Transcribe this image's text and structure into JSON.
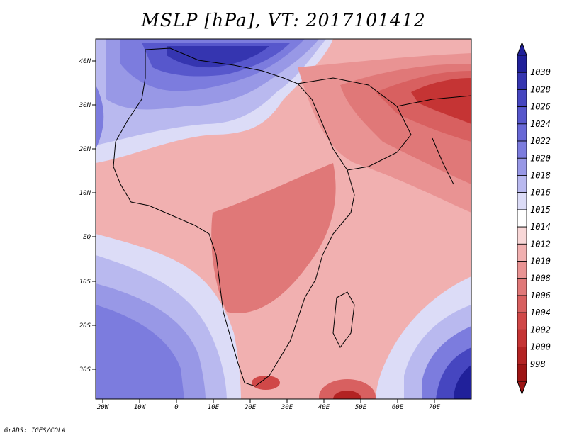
{
  "title": "MSLP [hPa], VT: 2017101412",
  "footer": "GrADS: IGES/COLA",
  "map": {
    "lat_labels": [
      "40N",
      "30N",
      "20N",
      "10N",
      "EQ",
      "10S",
      "20S",
      "30S"
    ],
    "lon_labels": [
      "20W",
      "10W",
      "0",
      "10E",
      "20E",
      "30E",
      "40E",
      "50E",
      "60E",
      "70E"
    ]
  },
  "legend": {
    "levels": [
      "1030",
      "1028",
      "1026",
      "1024",
      "1022",
      "1020",
      "1018",
      "1016",
      "1015",
      "1014",
      "1012",
      "1010",
      "1008",
      "1006",
      "1004",
      "1002",
      "1000",
      "998"
    ],
    "colors": [
      "#20209a",
      "#3535b0",
      "#4646c0",
      "#5757cc",
      "#6868d6",
      "#7c7cde",
      "#9898e6",
      "#b9b9ef",
      "#dcdcf7",
      "#ffffff",
      "#f8d7d7",
      "#f1b0b0",
      "#e99393",
      "#e07878",
      "#d86060",
      "#d04848",
      "#c53434",
      "#b32323",
      "#9d1414"
    ]
  }
}
